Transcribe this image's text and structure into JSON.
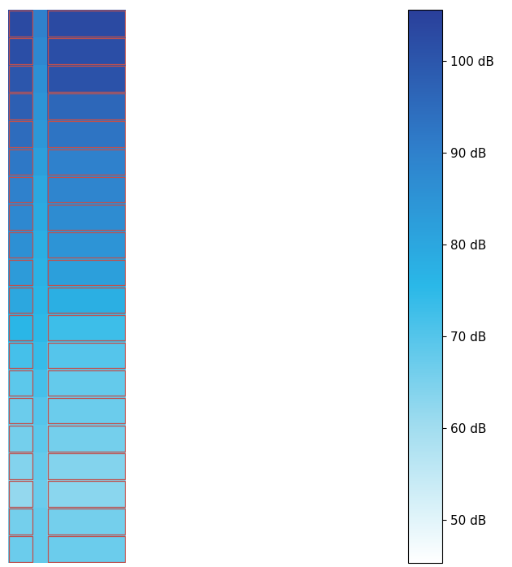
{
  "chart_data": {
    "type": "heatmap",
    "cells": [
      [
        103,
        90,
        103
      ],
      [
        102,
        88,
        102
      ],
      [
        100,
        86,
        101
      ],
      [
        98,
        85,
        96
      ],
      [
        95,
        84,
        93
      ],
      [
        92,
        82,
        90
      ],
      [
        90,
        80,
        89
      ],
      [
        88,
        79,
        87
      ],
      [
        86,
        78,
        85
      ],
      [
        83,
        77,
        82
      ],
      [
        80,
        76,
        78
      ],
      [
        76,
        75,
        73
      ],
      [
        72,
        74,
        70
      ],
      [
        69,
        72,
        68
      ],
      [
        67,
        70,
        67
      ],
      [
        66,
        69,
        66
      ],
      [
        64,
        68,
        64
      ],
      [
        62,
        67,
        63
      ],
      [
        66,
        68,
        66
      ],
      [
        67,
        68,
        67
      ]
    ],
    "colorbar_range": [
      45.3,
      105.6
    ],
    "colorbar_ticks": [
      {
        "value": 50,
        "label": "50 dB"
      },
      {
        "value": 60,
        "label": "60 dB"
      },
      {
        "value": 70,
        "label": "70 dB"
      },
      {
        "value": 80,
        "label": "80 dB"
      },
      {
        "value": 90,
        "label": "90 dB"
      },
      {
        "value": 100,
        "label": "100 dB"
      }
    ],
    "tick_labels": false
  }
}
